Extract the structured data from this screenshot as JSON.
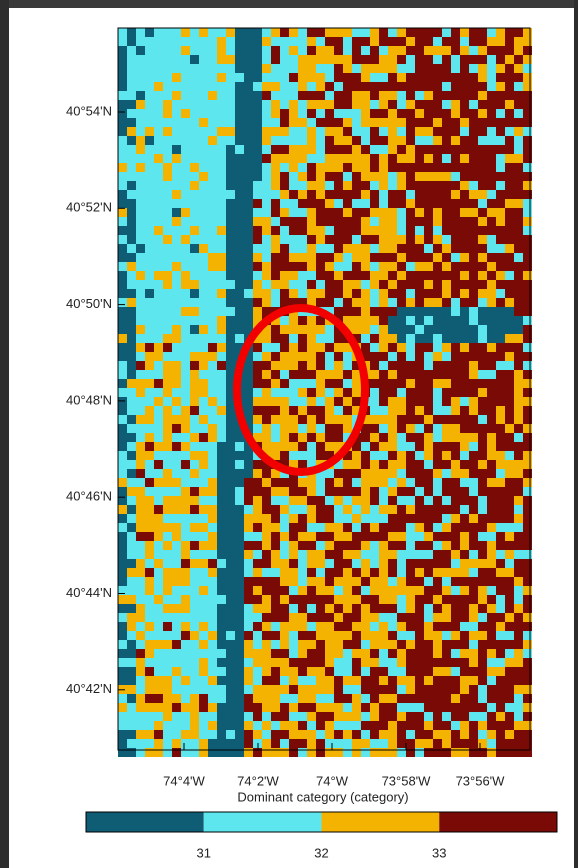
{
  "map": {
    "lat_ticks": [
      "40°54'N",
      "40°52'N",
      "40°50'N",
      "40°48'N",
      "40°46'N",
      "40°44'N",
      "40°42'N"
    ],
    "lon_ticks": [
      "74°4'W",
      "74°2'W",
      "74°W",
      "73°58'W",
      "73°56'W"
    ],
    "colorbar": {
      "title": "Dominant category  (category)",
      "colors": [
        "#0e5d75",
        "#5de6ee",
        "#f4b300",
        "#7a0a05"
      ],
      "labels": [
        31,
        32,
        33
      ]
    }
  }
}
